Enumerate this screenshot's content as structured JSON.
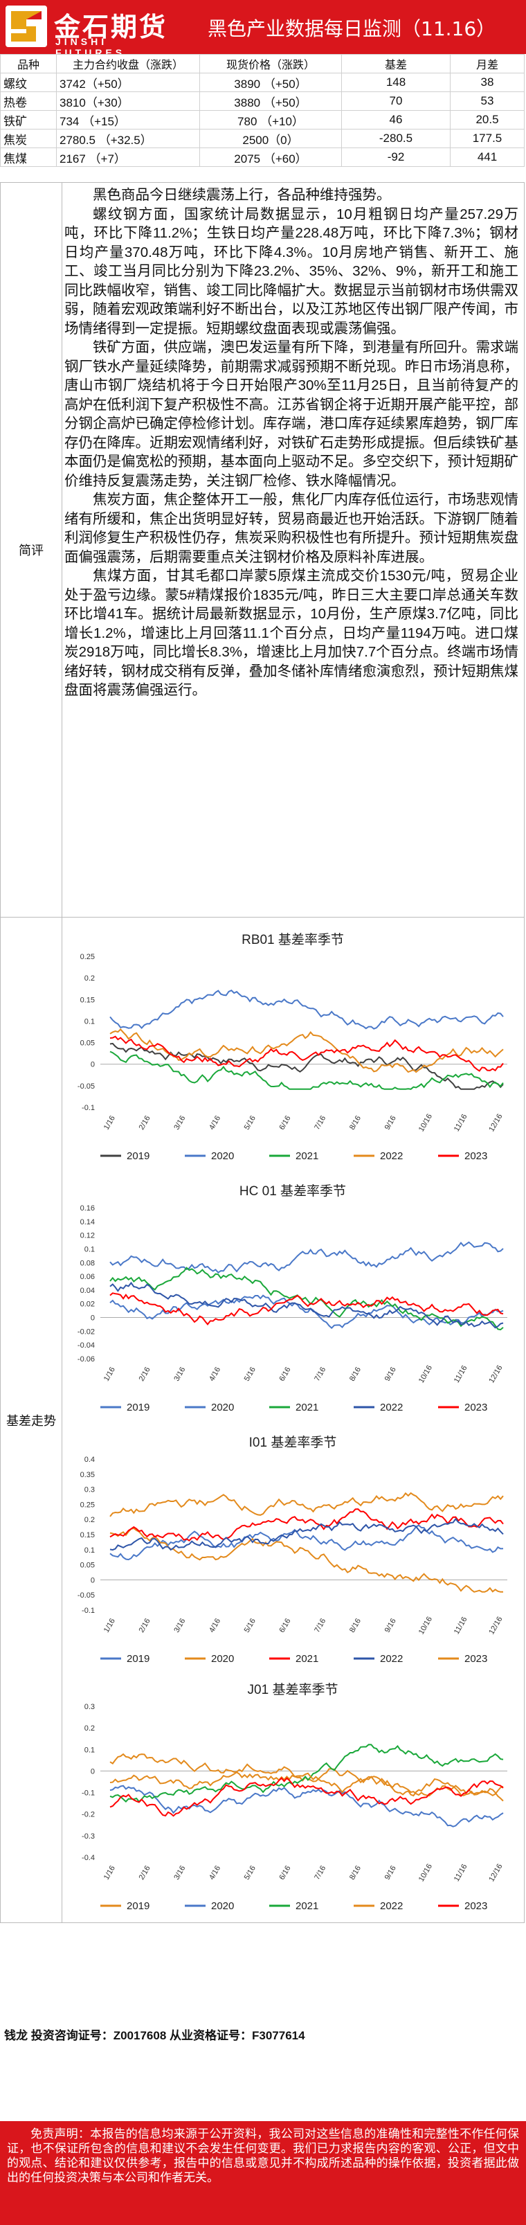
{
  "header": {
    "brand_cn": "金石期货",
    "brand_en": "JINSHI FUTURES",
    "title": "黑色产业数据每日监测（11.16）"
  },
  "summary": {
    "columns": [
      "品种",
      "主力合约收盘（涨跌）",
      "现货价格（涨跌）",
      "基差",
      "月差"
    ],
    "rows": [
      {
        "name": "螺纹",
        "close": "3742（+50）",
        "spot": "3890 （+50）",
        "basis": "148",
        "spread": "38"
      },
      {
        "name": "热卷",
        "close": "3810（+30）",
        "spot": "3880 （+50）",
        "basis": "70",
        "spread": "53"
      },
      {
        "name": "铁矿",
        "close": "734 （+15）",
        "spot": "780 （+10）",
        "basis": "46",
        "spread": "20.5"
      },
      {
        "name": "焦炭",
        "close": "2780.5 （+32.5）",
        "spot": "2500（0）",
        "basis": "-280.5",
        "spread": "177.5"
      },
      {
        "name": "焦煤",
        "close": "2167 （+7）",
        "spot": "2075 （+60）",
        "basis": "-92",
        "spread": "441"
      }
    ]
  },
  "comment": {
    "label": "简评",
    "paragraphs": [
      "黑色商品今日继续震荡上行，各品种维持强势。",
      "螺纹钢方面，国家统计局数据显示，10月粗钢日均产量257.29万吨，环比下降11.2%；生铁日均产量228.48万吨，环比下降7.3%；钢材日均产量370.48万吨，环比下降4.3%。10月房地产销售、新开工、施工、竣工当月同比分别为下降23.2%、35%、32%、9%，新开工和施工同比跌幅收窄，销售、竣工同比降幅扩大。数据显示当前钢材市场供需双弱，随着宏观政策端利好不断出台，以及江苏地区传出钢厂限产传闻，市场情绪得到一定提振。短期螺纹盘面表现或震荡偏强。",
      "铁矿方面，供应端，澳巴发运量有所下降，到港量有所回升。需求端钢厂铁水产量延续降势，前期需求减弱预期不断兑现。昨日市场消息称，唐山市钢厂烧结机将于今日开始限产30%至11月25日，且当前待复产的高炉在低利润下复产积极性不高。江苏省钢企将于近期开展产能平控，部分钢企高炉已确定停检修计划。库存端，港口库存延续累库趋势，钢厂库存仍在降库。近期宏观情绪利好，对铁矿石走势形成提振。但后续铁矿基本面仍是偏宽松的预期，基本面向上驱动不足。多空交织下，预计短期矿价维持反复震荡走势，关注钢厂检修、铁水降幅情况。",
      "焦炭方面，焦企整体开工一般，焦化厂内库存低位运行，市场悲观情绪有所缓和，焦企出货明显好转，贸易商最近也开始活跃。下游钢厂随着利润修复生产积极性仍存，焦炭采购积极性也有所提升。预计短期焦炭盘面偏强震荡，后期需要重点关注钢材价格及原料补库进展。",
      "焦煤方面，甘其毛都口岸蒙5原煤主流成交价1530元/吨，贸易企业处于盈亏边缘。蒙5#精煤报价1835元/吨，昨日三大主要口岸总通关车数环比增41车。据统计局最新数据显示，10月份，生产原煤3.7亿吨，同比增长1.2%，增速比上月回落11.1个百分点，日均产量1194万吨。进口煤炭2918万吨，同比增长8.3%，增速比上月加快7.7个百分点。终端市场情绪好转，钢材成交稍有反弹，叠加冬储补库情绪愈演愈烈，预计短期焦煤盘面将震荡偏强运行。"
    ]
  },
  "basis": {
    "label": "基差走势",
    "series_colors": {
      "2019": "#404040",
      "2020": "#4a78c8",
      "2021": "#1aa83a",
      "2022": "#e38a1c",
      "2023": "#ff0000"
    },
    "x_ticks": [
      "1/16",
      "2/16",
      "3/16",
      "4/16",
      "5/16",
      "6/16",
      "7/16",
      "8/16",
      "9/16",
      "10/16",
      "11/16",
      "12/16"
    ],
    "charts": [
      {
        "title": "RB01 基差率季节",
        "series_colors": {
          "2019": "#404040",
          "2020": "#4a78c8",
          "2021": "#1aa83a",
          "2022": "#e38a1c",
          "2023": "#ff0000"
        },
        "ylim": [
          -0.1,
          0.25
        ],
        "y_ticks": [
          "0.25",
          "0.2",
          "0.15",
          "0.1",
          "0.05",
          "0",
          "-0.05",
          "-0.1"
        ]
      },
      {
        "title": "HC 01 基差率季节",
        "series_colors": {
          "2019": "#4a78c8",
          "2020": "#4a78c8",
          "2021": "#1aa83a",
          "2022": "#2e55a8",
          "2023": "#ff0000"
        },
        "ylim": [
          -0.06,
          0.16
        ],
        "y_ticks": [
          "0.16",
          "0.14",
          "0.12",
          "0.1",
          "0.08",
          "0.06",
          "0.04",
          "0.02",
          "0",
          "-0.02",
          "-0.04",
          "-0.06"
        ]
      },
      {
        "title": "I01 基差率季节",
        "series_colors": {
          "2019": "#4a78c8",
          "2020": "#e38a1c",
          "2021": "#ff0000",
          "2022": "#2e55a8",
          "2023": "#e38a1c"
        },
        "ylim": [
          -0.1,
          0.4
        ],
        "y_ticks": [
          "0.4",
          "0.35",
          "0.3",
          "0.25",
          "0.2",
          "0.15",
          "0.1",
          "0.05",
          "0",
          "-0.05",
          "-0.1"
        ]
      },
      {
        "title": "J01 基差率季节",
        "series_colors": {
          "2019": "#e38a1c",
          "2020": "#4a78c8",
          "2021": "#1aa83a",
          "2022": "#e38a1c",
          "2023": "#ff0000"
        },
        "ylim": [
          -0.4,
          0.3
        ],
        "y_ticks": [
          "0.3",
          "0.2",
          "0.1",
          "0",
          "-0.1",
          "-0.2",
          "-0.3",
          "-0.4"
        ]
      }
    ],
    "legend": [
      "2019",
      "2020",
      "2021",
      "2022",
      "2023"
    ]
  },
  "footer": {
    "contact": "钱龙 投资咨询证号：Z0017608 从业资格证号：F3077614",
    "disclaimer": "免责声明：本报告的信息均来源于公开资料，我公司对这些信息的准确性和完整性不作任何保证，也不保证所包含的信息和建议不会发生任何变更。我们已力求报告内容的客观、公正，但文中的观点、结论和建议仅供参考，报告中的信息或意见并不构成所述品种的操作依据，投资者据此做出的任何投资决策与本公司和作者无关。"
  }
}
